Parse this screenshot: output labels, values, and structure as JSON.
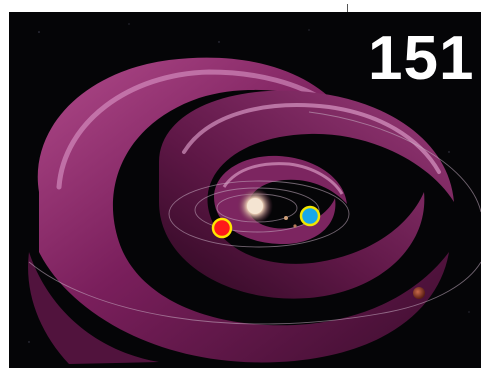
{
  "slide": {
    "number_label": "151"
  },
  "colors": {
    "background": "#050507",
    "sheet_primary": "#8a2a6a",
    "sheet_highlight": "#d88cc2",
    "sheet_shadow": "#3a0c2c",
    "sun_glow": "#e8d8c8",
    "marker_red_fill": "#ff1a1a",
    "marker_red_ring": "#ffe600",
    "marker_blue_fill": "#18a8e8",
    "marker_blue_ring": "#f2e600",
    "planet_outer": "#8a3a2a"
  },
  "icons": {
    "marker_red": "red-dot-marker-icon",
    "marker_blue": "blue-dot-marker-icon"
  }
}
